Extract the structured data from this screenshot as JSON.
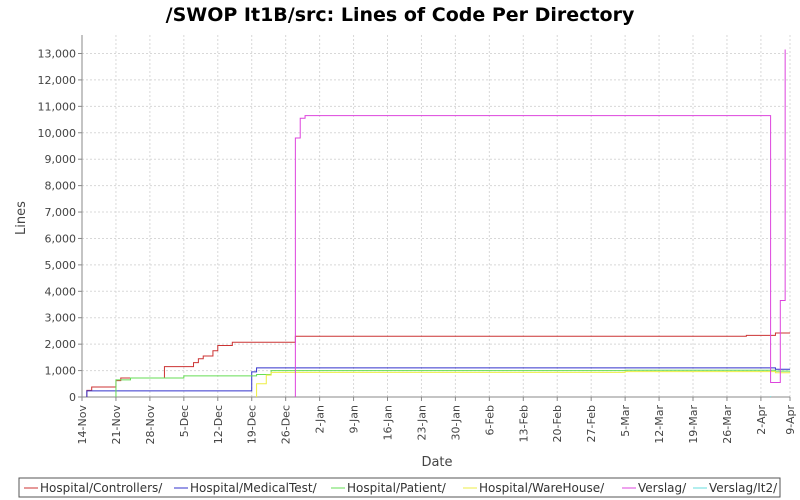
{
  "chart_data": {
    "type": "line",
    "title": "/SWOP It1B/src: Lines of Code Per Directory",
    "xlabel": "Date",
    "ylabel": "Lines",
    "ylim": [
      0,
      13700
    ],
    "yticks": [
      0,
      1000,
      2000,
      3000,
      4000,
      5000,
      6000,
      7000,
      8000,
      9000,
      10000,
      11000,
      12000,
      13000
    ],
    "ytick_labels": [
      "0",
      "1,000",
      "2,000",
      "3,000",
      "4,000",
      "5,000",
      "6,000",
      "7,000",
      "8,000",
      "9,000",
      "10,000",
      "11,000",
      "12,000",
      "13,000"
    ],
    "xlim": [
      "2006-11-14",
      "2007-04-09"
    ],
    "xticks": [
      "2006-11-14",
      "2006-11-21",
      "2006-11-28",
      "2006-12-05",
      "2006-12-12",
      "2006-12-19",
      "2006-12-26",
      "2007-01-02",
      "2007-01-09",
      "2007-01-16",
      "2007-01-23",
      "2007-01-30",
      "2007-02-06",
      "2007-02-13",
      "2007-02-20",
      "2007-02-27",
      "2007-03-06",
      "2007-03-13",
      "2007-03-20",
      "2007-03-27",
      "2007-04-03",
      "2007-04-09"
    ],
    "xtick_labels": [
      "14-Nov",
      "21-Nov",
      "28-Nov",
      "5-Dec",
      "12-Dec",
      "19-Dec",
      "26-Dec",
      "2-Jan",
      "9-Jan",
      "16-Jan",
      "23-Jan",
      "30-Jan",
      "6-Feb",
      "13-Feb",
      "20-Feb",
      "27-Feb",
      "5-Mar",
      "12-Mar",
      "19-Mar",
      "26-Mar",
      "2-Apr",
      "9-Apr"
    ],
    "grid": true,
    "legend_position": "bottom",
    "series": [
      {
        "name": "Hospital/Controllers/",
        "color": "#cc3333",
        "points": [
          [
            "2006-11-15",
            0
          ],
          [
            "2006-11-15",
            250
          ],
          [
            "2006-11-16",
            250
          ],
          [
            "2006-11-16",
            380
          ],
          [
            "2006-11-21",
            380
          ],
          [
            "2006-11-21",
            620
          ],
          [
            "2006-11-22",
            620
          ],
          [
            "2006-11-22",
            720
          ],
          [
            "2006-12-01",
            720
          ],
          [
            "2006-12-01",
            1150
          ],
          [
            "2006-12-07",
            1150
          ],
          [
            "2006-12-07",
            1300
          ],
          [
            "2006-12-08",
            1300
          ],
          [
            "2006-12-08",
            1450
          ],
          [
            "2006-12-09",
            1450
          ],
          [
            "2006-12-09",
            1550
          ],
          [
            "2006-12-11",
            1550
          ],
          [
            "2006-12-11",
            1750
          ],
          [
            "2006-12-12",
            1750
          ],
          [
            "2006-12-12",
            1950
          ],
          [
            "2006-12-15",
            1950
          ],
          [
            "2006-12-15",
            2070
          ],
          [
            "2006-12-28",
            2070
          ],
          [
            "2006-12-28",
            2300
          ],
          [
            "2007-03-31",
            2300
          ],
          [
            "2007-03-31",
            2330
          ],
          [
            "2007-04-06",
            2330
          ],
          [
            "2007-04-06",
            2420
          ],
          [
            "2007-04-09",
            2420
          ]
        ]
      },
      {
        "name": "Hospital/MedicalTest/",
        "color": "#3333cc",
        "points": [
          [
            "2006-11-15",
            0
          ],
          [
            "2006-11-15",
            230
          ],
          [
            "2006-12-19",
            230
          ],
          [
            "2006-12-19",
            950
          ],
          [
            "2006-12-20",
            950
          ],
          [
            "2006-12-20",
            1100
          ],
          [
            "2007-04-06",
            1100
          ],
          [
            "2007-04-06",
            1050
          ],
          [
            "2007-04-09",
            1050
          ]
        ]
      },
      {
        "name": "Hospital/Patient/",
        "color": "#66dd55",
        "points": [
          [
            "2006-11-21",
            0
          ],
          [
            "2006-11-21",
            230
          ],
          [
            "2006-11-21",
            650
          ],
          [
            "2006-11-24",
            650
          ],
          [
            "2006-11-24",
            720
          ],
          [
            "2006-12-05",
            720
          ],
          [
            "2006-12-05",
            800
          ],
          [
            "2006-12-20",
            800
          ],
          [
            "2006-12-20",
            850
          ],
          [
            "2006-12-23",
            850
          ],
          [
            "2006-12-23",
            1000
          ],
          [
            "2007-03-06",
            1000
          ],
          [
            "2007-03-06",
            1010
          ],
          [
            "2007-04-06",
            1010
          ],
          [
            "2007-04-06",
            980
          ],
          [
            "2007-04-09",
            980
          ]
        ]
      },
      {
        "name": "Hospital/WareHouse/",
        "color": "#eeee44",
        "points": [
          [
            "2006-12-20",
            0
          ],
          [
            "2006-12-20",
            500
          ],
          [
            "2006-12-22",
            500
          ],
          [
            "2006-12-22",
            830
          ],
          [
            "2006-12-23",
            830
          ],
          [
            "2006-12-23",
            930
          ],
          [
            "2007-03-06",
            930
          ],
          [
            "2007-03-06",
            960
          ],
          [
            "2007-04-06",
            960
          ],
          [
            "2007-04-06",
            920
          ],
          [
            "2007-04-09",
            920
          ]
        ]
      },
      {
        "name": "Verslag/",
        "color": "#dd44dd",
        "points": [
          [
            "2006-12-28",
            0
          ],
          [
            "2006-12-28",
            9800
          ],
          [
            "2006-12-29",
            9800
          ],
          [
            "2006-12-29",
            10550
          ],
          [
            "2006-12-30",
            10550
          ],
          [
            "2006-12-30",
            10650
          ],
          [
            "2007-04-05",
            10650
          ],
          [
            "2007-04-05",
            550
          ],
          [
            "2007-04-07",
            550
          ],
          [
            "2007-04-07",
            3650
          ],
          [
            "2007-04-08",
            3650
          ],
          [
            "2007-04-08",
            13150
          ]
        ]
      },
      {
        "name": "Verslag/It2/",
        "color": "#66dddd",
        "points": [
          [
            "2007-04-05",
            0
          ],
          [
            "2007-04-05",
            30
          ]
        ]
      }
    ]
  }
}
